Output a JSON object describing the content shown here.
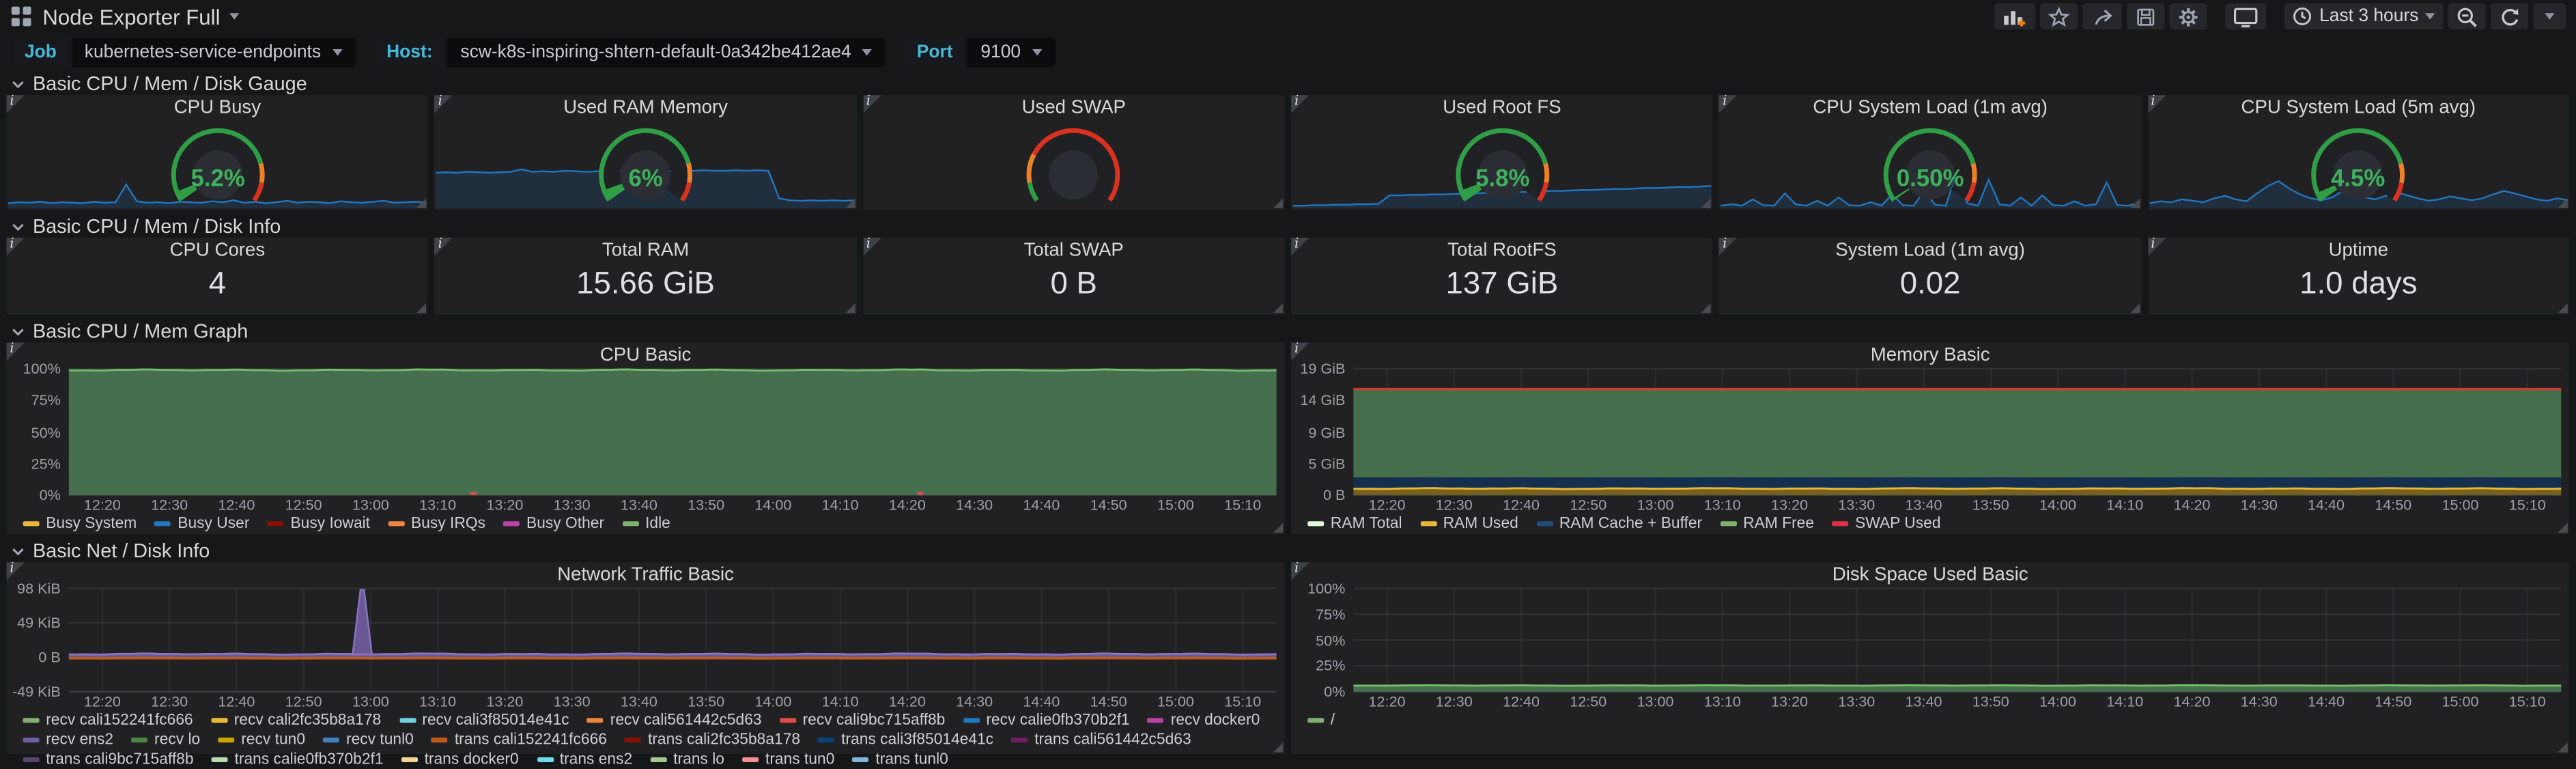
{
  "header": {
    "title": "Node Exporter Full",
    "time_range": "Last 3 hours"
  },
  "icons": {
    "apps_menu": "grid-2x2",
    "add_panel": "bar-chart-plus",
    "star": "star-outline",
    "share": "share-arrow",
    "save": "floppy-disk",
    "settings": "gear",
    "kiosk": "monitor",
    "clock": "clock",
    "zoom_out": "magnifier-minus",
    "refresh": "circular-arrow",
    "dropdown": "caret-down",
    "panel_info": "i",
    "row_collapse": "chevron-down"
  },
  "colors": {
    "value_green": "#3EB15B",
    "spark_line": "#1F78C1",
    "spark_fill": "rgba(31,120,193,0.16)",
    "gauge_green": "#2f9e45",
    "gauge_orange": "#ED8128",
    "gauge_red": "#D9331F",
    "variable_label": "#45b7d8"
  },
  "variables": [
    {
      "label": "Job",
      "value": "kubernetes-service-endpoints"
    },
    {
      "label": "Host:",
      "value": "scw-k8s-inspiring-shtern-default-0a342be412ae4"
    },
    {
      "label": "Port",
      "value": "9100"
    }
  ],
  "rows": [
    "Basic CPU / Mem / Disk Gauge",
    "Basic CPU / Mem / Disk Info",
    "Basic CPU / Mem Graph",
    "Basic Net / Disk Info"
  ],
  "gauge_row": {
    "panels": [
      {
        "title": "CPU Busy",
        "value": "5.2%",
        "fraction": 0.052,
        "thresholds": [
          {
            "to": 0.8,
            "color": "#2f9e45"
          },
          {
            "to": 0.9,
            "color": "#ED8128"
          },
          {
            "to": 1,
            "color": "#D9331F"
          }
        ],
        "sparkline": [
          0.1,
          0.12,
          0.11,
          0.13,
          0.1,
          0.12,
          0.11,
          0.1,
          0.13,
          0.11,
          0.12,
          0.48,
          0.14,
          0.11,
          0.12,
          0.1,
          0.13,
          0.12,
          0.11,
          0.14,
          0.12,
          0.16,
          0.11,
          0.13,
          0.1,
          0.12,
          0.15,
          0.11,
          0.13,
          0.12,
          0.1,
          0.14,
          0.12,
          0.11,
          0.13,
          0.15,
          0.11,
          0.12,
          0.13,
          0.11
        ]
      },
      {
        "title": "Used RAM Memory",
        "value": "6%",
        "fraction": 0.06,
        "thresholds": [
          {
            "to": 0.8,
            "color": "#2f9e45"
          },
          {
            "to": 0.9,
            "color": "#ED8128"
          },
          {
            "to": 1,
            "color": "#D9331F"
          }
        ],
        "sparkline": [
          0.72,
          0.73,
          0.72,
          0.74,
          0.73,
          0.72,
          0.73,
          0.74,
          0.79,
          0.74,
          0.75,
          0.74,
          0.76,
          0.75,
          0.74,
          0.75,
          0.76,
          0.75,
          0.76,
          0.75,
          0.76,
          0.76,
          0.75,
          0.76,
          0.76,
          0.77,
          0.76,
          0.76,
          0.77,
          0.76,
          0.77,
          0.76,
          0.2,
          0.16,
          0.15,
          0.16,
          0.15,
          0.16,
          0.15,
          0.16
        ]
      },
      {
        "title": "Used SWAP",
        "value": "",
        "fraction": 0,
        "thresholds": [
          {
            "to": 0.1,
            "color": "#2f9e45"
          },
          {
            "to": 0.25,
            "color": "#ED8128"
          },
          {
            "to": 1,
            "color": "#D9331F"
          }
        ],
        "sparkline": null
      },
      {
        "title": "Used Root FS",
        "value": "5.8%",
        "fraction": 0.058,
        "thresholds": [
          {
            "to": 0.8,
            "color": "#2f9e45"
          },
          {
            "to": 0.9,
            "color": "#ED8128"
          },
          {
            "to": 1,
            "color": "#D9331F"
          }
        ],
        "sparkline": [
          0.05,
          0.05,
          0.06,
          0.06,
          0.07,
          0.07,
          0.08,
          0.08,
          0.09,
          0.26,
          0.26,
          0.27,
          0.27,
          0.28,
          0.28,
          0.29,
          0.29,
          0.3,
          0.31,
          0.31,
          0.32,
          0.33,
          0.33,
          0.34,
          0.35,
          0.35,
          0.36,
          0.37,
          0.37,
          0.38,
          0.39,
          0.39,
          0.4,
          0.41,
          0.41,
          0.42,
          0.43,
          0.43,
          0.44,
          0.45
        ]
      },
      {
        "title": "CPU System Load (1m avg)",
        "value": "0.50%",
        "fraction": 0.005,
        "thresholds": [
          {
            "to": 0.8,
            "color": "#2f9e45"
          },
          {
            "to": 0.9,
            "color": "#ED8128"
          },
          {
            "to": 1,
            "color": "#D9331F"
          }
        ],
        "sparkline": [
          0.05,
          0.08,
          0.05,
          0.18,
          0.06,
          0.05,
          0.3,
          0.08,
          0.05,
          0.15,
          0.05,
          0.22,
          0.06,
          0.05,
          0.12,
          0.05,
          0.28,
          0.06,
          0.05,
          0.35,
          0.07,
          0.05,
          0.72,
          0.1,
          0.05,
          0.58,
          0.08,
          0.05,
          0.22,
          0.05,
          0.26,
          0.06,
          0.05,
          0.14,
          0.05,
          0.08,
          0.52,
          0.06,
          0.05,
          0.1
        ]
      },
      {
        "title": "CPU System Load (5m avg)",
        "value": "4.5%",
        "fraction": 0.045,
        "thresholds": [
          {
            "to": 0.8,
            "color": "#2f9e45"
          },
          {
            "to": 0.9,
            "color": "#ED8128"
          },
          {
            "to": 1,
            "color": "#D9331F"
          }
        ],
        "sparkline": [
          0.1,
          0.14,
          0.12,
          0.18,
          0.15,
          0.12,
          0.2,
          0.25,
          0.18,
          0.14,
          0.3,
          0.45,
          0.55,
          0.4,
          0.28,
          0.2,
          0.16,
          0.22,
          0.35,
          0.3,
          0.22,
          0.18,
          0.25,
          0.32,
          0.26,
          0.2,
          0.15,
          0.18,
          0.24,
          0.2,
          0.16,
          0.2,
          0.28,
          0.35,
          0.3,
          0.24,
          0.18,
          0.15,
          0.2,
          0.16
        ]
      }
    ]
  },
  "stat_row": {
    "panels": [
      {
        "title": "CPU Cores",
        "value": "4"
      },
      {
        "title": "Total RAM",
        "value": "15.66 GiB"
      },
      {
        "title": "Total SWAP",
        "value": "0 B"
      },
      {
        "title": "Total RootFS",
        "value": "137 GiB"
      },
      {
        "title": "System Load (1m avg)",
        "value": "0.02"
      },
      {
        "title": "Uptime",
        "value": "1.0 days"
      }
    ]
  },
  "chart_data": [
    {
      "type": "area",
      "title": "CPU Basic",
      "stacked": true,
      "ylim": [
        0,
        100
      ],
      "yticks": [
        "100%",
        "75%",
        "50%",
        "25%",
        "0%"
      ],
      "categories": [
        "12:20",
        "12:30",
        "12:40",
        "12:50",
        "13:00",
        "13:10",
        "13:20",
        "13:30",
        "13:40",
        "13:50",
        "14:00",
        "14:10",
        "14:20",
        "14:30",
        "14:40",
        "14:50",
        "15:00",
        "15:10"
      ],
      "bands": [
        {
          "name": "Idle",
          "fill": "#456f4d",
          "line": "#73BF69",
          "y0": 0,
          "y1": 99.0,
          "noise": 0.55
        }
      ],
      "lines": [],
      "marks": [
        {
          "x": 0.335,
          "color": "#E24D42"
        },
        {
          "x": 0.705,
          "color": "#E24D42"
        }
      ],
      "legend": [
        {
          "label": "Busy System",
          "color": "#EAB839"
        },
        {
          "label": "Busy User",
          "color": "#1F78C1"
        },
        {
          "label": "Busy Iowait",
          "color": "#890F02"
        },
        {
          "label": "Busy IRQs",
          "color": "#EF843C"
        },
        {
          "label": "Busy Other",
          "color": "#BA43A9"
        },
        {
          "label": "Idle",
          "color": "#7EB26D"
        }
      ]
    },
    {
      "type": "area",
      "title": "Memory Basic",
      "stacked": true,
      "ylim": [
        0,
        18.66
      ],
      "yticks": [
        "19 GiB",
        "14 GiB",
        "9 GiB",
        "5 GiB",
        "0 B"
      ],
      "categories": [
        "12:20",
        "12:30",
        "12:40",
        "12:50",
        "13:00",
        "13:10",
        "13:20",
        "13:30",
        "13:40",
        "13:50",
        "14:00",
        "14:10",
        "14:20",
        "14:30",
        "14:40",
        "14:50",
        "15:00",
        "15:10"
      ],
      "bands": [
        {
          "name": "RAM Free",
          "fill": "#456f4d",
          "y0": 2.6,
          "y1": 15.55,
          "noise": 0.05
        },
        {
          "name": "RAM Cache + Buffer",
          "fill": "#15304e",
          "y0": 0.95,
          "y1": 2.6,
          "noise": 0.05
        },
        {
          "name": "RAM Used",
          "fill": "#77621c",
          "line": "#EAB839",
          "y0": 0,
          "y1": 0.95,
          "noise": 0.08
        }
      ],
      "lines": [
        {
          "name": "RAM Total",
          "y": 15.66,
          "color": "#C63F2B",
          "noise": 0
        }
      ],
      "marks": [],
      "legend": [
        {
          "label": "RAM Total",
          "color": "#E0F9D7"
        },
        {
          "label": "RAM Used",
          "color": "#EAB839"
        },
        {
          "label": "RAM Cache + Buffer",
          "color": "#1F4E79"
        },
        {
          "label": "RAM Free",
          "color": "#7EB26D"
        },
        {
          "label": "SWAP Used",
          "color": "#E02F44"
        }
      ]
    },
    {
      "type": "area",
      "title": "Network Traffic Basic",
      "stacked": false,
      "ylim": [
        -49,
        98
      ],
      "yticks": [
        "98 KiB",
        "49 KiB",
        "0 B",
        "-49 KiB"
      ],
      "categories": [
        "12:20",
        "12:30",
        "12:40",
        "12:50",
        "13:00",
        "13:10",
        "13:20",
        "13:30",
        "13:40",
        "13:50",
        "14:00",
        "14:10",
        "14:20",
        "14:30",
        "14:40",
        "14:50",
        "15:00",
        "15:10"
      ],
      "bands": [
        {
          "name": "recv ens2",
          "fill": "#6a5795",
          "line": "#8a74c0",
          "y0": 0,
          "y1": 4.6,
          "noise": 1.0
        },
        {
          "name": "trans ens2",
          "fill": "#584477",
          "y0": -2.6,
          "y1": 0,
          "noise": 0.5
        }
      ],
      "lines": [
        {
          "name": "trans cali152241fc666",
          "y": -1.3,
          "color": "#C15C17",
          "noise": 0.2
        }
      ],
      "spike": {
        "x": 0.243,
        "top": 96,
        "color": "#6a5795",
        "edge": "#8a74c0"
      },
      "marks": [],
      "legend": [
        {
          "label": "recv cali152241fc666",
          "color": "#7EB26D"
        },
        {
          "label": "recv cali2fc35b8a178",
          "color": "#EAB839"
        },
        {
          "label": "recv cali3f85014e41c",
          "color": "#6ED0E0"
        },
        {
          "label": "recv cali561442c5d63",
          "color": "#EF843C"
        },
        {
          "label": "recv cali9bc715aff8b",
          "color": "#E24D42"
        },
        {
          "label": "recv calie0fb370b2f1",
          "color": "#1F78C1"
        },
        {
          "label": "recv docker0",
          "color": "#BA43A9"
        },
        {
          "label": "recv ens2",
          "color": "#705DA0"
        },
        {
          "label": "recv lo",
          "color": "#508642"
        },
        {
          "label": "recv tun0",
          "color": "#CCA300"
        },
        {
          "label": "recv tunl0",
          "color": "#447EBC"
        },
        {
          "label": "trans cali152241fc666",
          "color": "#C15C17"
        },
        {
          "label": "trans cali2fc35b8a178",
          "color": "#890F02"
        },
        {
          "label": "trans cali3f85014e41c",
          "color": "#0A437C"
        },
        {
          "label": "trans cali561442c5d63",
          "color": "#6D1F62"
        },
        {
          "label": "trans cali9bc715aff8b",
          "color": "#584477"
        },
        {
          "label": "trans calie0fb370b2f1",
          "color": "#B7DBAB"
        },
        {
          "label": "trans docker0",
          "color": "#F4D598"
        },
        {
          "label": "trans ens2",
          "color": "#70DBED"
        },
        {
          "label": "trans lo",
          "color": "#A2C98F"
        },
        {
          "label": "trans tun0",
          "color": "#F29191"
        },
        {
          "label": "trans tunl0",
          "color": "#82B5D8"
        }
      ]
    },
    {
      "type": "area",
      "title": "Disk Space Used Basic",
      "stacked": false,
      "ylim": [
        0,
        100
      ],
      "yticks": [
        "100%",
        "75%",
        "50%",
        "25%",
        "0%"
      ],
      "categories": [
        "12:20",
        "12:30",
        "12:40",
        "12:50",
        "13:00",
        "13:10",
        "13:20",
        "13:30",
        "13:40",
        "13:50",
        "14:00",
        "14:10",
        "14:20",
        "14:30",
        "14:40",
        "14:50",
        "15:00",
        "15:10"
      ],
      "bands": [
        {
          "name": "/",
          "fill": "#456f4d",
          "line": "#73BF69",
          "y0": 0,
          "y1": 6,
          "noise": 0.25
        }
      ],
      "lines": [],
      "marks": [],
      "legend": [
        {
          "label": "/",
          "color": "#7EB26D"
        }
      ]
    }
  ]
}
